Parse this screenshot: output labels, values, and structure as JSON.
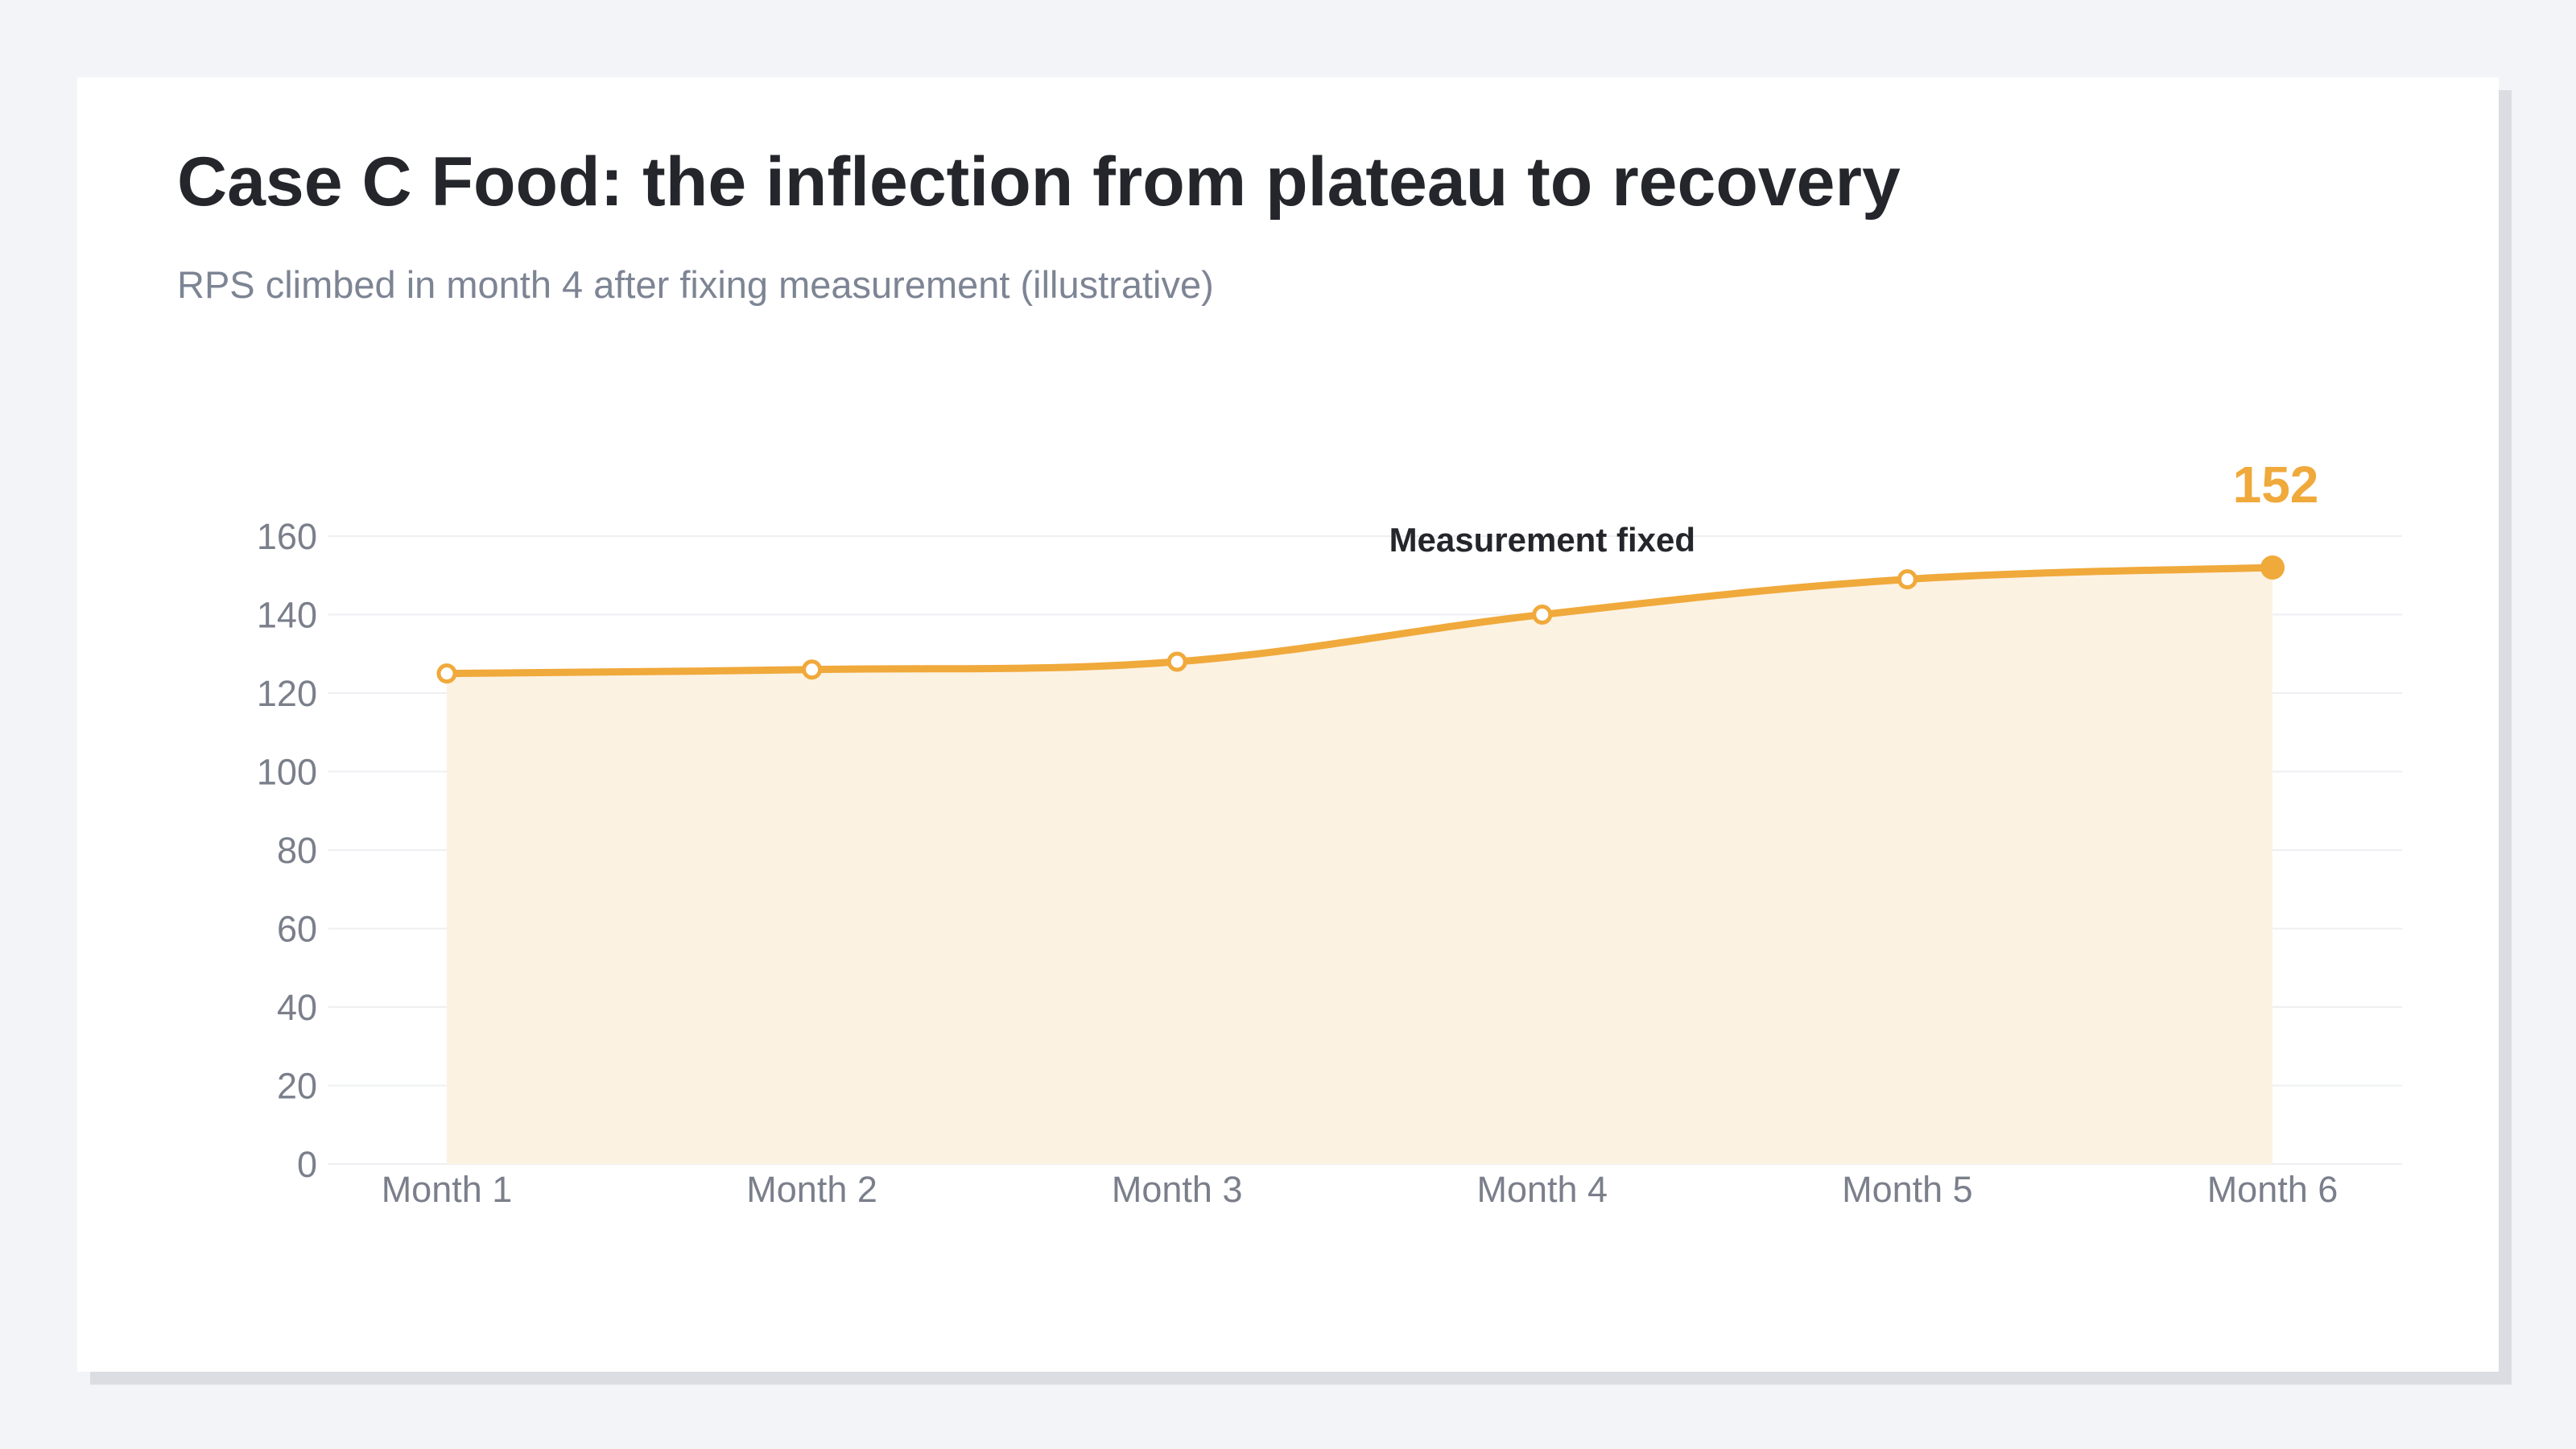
{
  "header": {
    "title": "Case C Food: the inflection from plateau to recovery",
    "subtitle": "RPS climbed in month 4 after fixing measurement (illustrative)"
  },
  "colors": {
    "series": "#f0a93b",
    "area_fill": "#fcf2e2",
    "grid": "#eeeff2",
    "axis_text": "#7a7f8b",
    "title": "#24262b"
  },
  "chart_data": {
    "type": "area",
    "title": "Case C Food: the inflection from plateau to recovery",
    "subtitle": "RPS climbed in month 4 after fixing measurement (illustrative)",
    "xlabel": "",
    "ylabel": "",
    "categories": [
      "Month 1",
      "Month 2",
      "Month 3",
      "Month 4",
      "Month 5",
      "Month 6"
    ],
    "series": [
      {
        "values": [
          125,
          126,
          128,
          140,
          149,
          152
        ]
      }
    ],
    "ylim": [
      0,
      160
    ],
    "yticks": [
      0,
      20,
      40,
      60,
      80,
      100,
      120,
      140,
      160
    ],
    "grid": true,
    "legend": "none",
    "annotations": [
      {
        "text": "Measurement fixed",
        "x": "Month 4"
      }
    ],
    "end_label": "152"
  }
}
